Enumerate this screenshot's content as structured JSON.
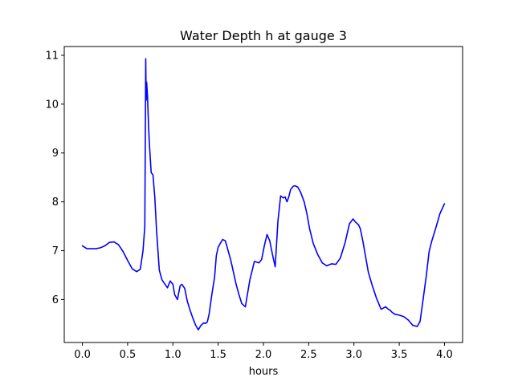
{
  "chart_data": {
    "type": "line",
    "title": "Water Depth h at gauge 3",
    "xlabel": "hours",
    "ylabel": "",
    "xlim": [
      -0.2,
      4.2
    ],
    "ylim": [
      5.12,
      11.18
    ],
    "xticks": [
      0.0,
      0.5,
      1.0,
      1.5,
      2.0,
      2.5,
      3.0,
      3.5,
      4.0
    ],
    "xtick_labels": [
      "0.0",
      "0.5",
      "1.0",
      "1.5",
      "2.0",
      "2.5",
      "3.0",
      "3.5",
      "4.0"
    ],
    "yticks": [
      6,
      7,
      8,
      9,
      10,
      11
    ],
    "ytick_labels": [
      "6",
      "7",
      "8",
      "9",
      "10",
      "11"
    ],
    "grid": false,
    "line_color": "#0000ff",
    "series": [
      {
        "name": "",
        "x": [
          0.0,
          0.05,
          0.1,
          0.15,
          0.2,
          0.25,
          0.3,
          0.35,
          0.4,
          0.45,
          0.5,
          0.55,
          0.6,
          0.64,
          0.67,
          0.69,
          0.7,
          0.705,
          0.71,
          0.72,
          0.73,
          0.74,
          0.76,
          0.78,
          0.8,
          0.82,
          0.85,
          0.88,
          0.91,
          0.94,
          0.97,
          1.0,
          1.02,
          1.05,
          1.08,
          1.1,
          1.13,
          1.16,
          1.19,
          1.22,
          1.25,
          1.28,
          1.31,
          1.34,
          1.36,
          1.38,
          1.4,
          1.43,
          1.46,
          1.48,
          1.5,
          1.53,
          1.55,
          1.58,
          1.61,
          1.64,
          1.67,
          1.7,
          1.73,
          1.76,
          1.8,
          1.85,
          1.9,
          1.95,
          1.98,
          2.01,
          2.04,
          2.07,
          2.1,
          2.13,
          2.16,
          2.19,
          2.22,
          2.24,
          2.26,
          2.28,
          2.3,
          2.33,
          2.35,
          2.38,
          2.41,
          2.45,
          2.48,
          2.51,
          2.55,
          2.6,
          2.65,
          2.7,
          2.75,
          2.8,
          2.85,
          2.9,
          2.95,
          2.99,
          3.02,
          3.05,
          3.07,
          3.1,
          3.13,
          3.16,
          3.2,
          3.25,
          3.3,
          3.35,
          3.38,
          3.4,
          3.42,
          3.45,
          3.5,
          3.55,
          3.6,
          3.65,
          3.7,
          3.73,
          3.76,
          3.8,
          3.83,
          3.86,
          3.9,
          3.95,
          4.0
        ],
        "y": [
          7.1,
          7.04,
          7.04,
          7.04,
          7.06,
          7.1,
          7.17,
          7.18,
          7.12,
          6.98,
          6.8,
          6.63,
          6.57,
          6.62,
          7.0,
          7.5,
          10.93,
          10.08,
          10.45,
          10.15,
          9.6,
          9.2,
          8.6,
          8.55,
          8.1,
          7.4,
          6.6,
          6.4,
          6.32,
          6.24,
          6.38,
          6.31,
          6.1,
          6.0,
          6.28,
          6.31,
          6.23,
          5.96,
          5.78,
          5.62,
          5.48,
          5.38,
          5.47,
          5.52,
          5.51,
          5.54,
          5.7,
          6.1,
          6.45,
          6.9,
          7.07,
          7.17,
          7.23,
          7.2,
          7.0,
          6.8,
          6.55,
          6.3,
          6.1,
          5.92,
          5.85,
          6.4,
          6.78,
          6.75,
          6.82,
          7.1,
          7.33,
          7.2,
          6.92,
          6.67,
          7.6,
          8.12,
          8.08,
          8.1,
          8.0,
          8.1,
          8.25,
          8.32,
          8.33,
          8.3,
          8.2,
          8.0,
          7.76,
          7.45,
          7.15,
          6.92,
          6.75,
          6.69,
          6.73,
          6.72,
          6.85,
          7.15,
          7.55,
          7.65,
          7.58,
          7.53,
          7.45,
          7.18,
          6.86,
          6.55,
          6.3,
          6.02,
          5.8,
          5.85,
          5.8,
          5.78,
          5.74,
          5.7,
          5.68,
          5.65,
          5.58,
          5.47,
          5.45,
          5.55,
          5.95,
          6.5,
          6.98,
          7.2,
          7.44,
          7.76,
          7.96
        ]
      }
    ]
  }
}
